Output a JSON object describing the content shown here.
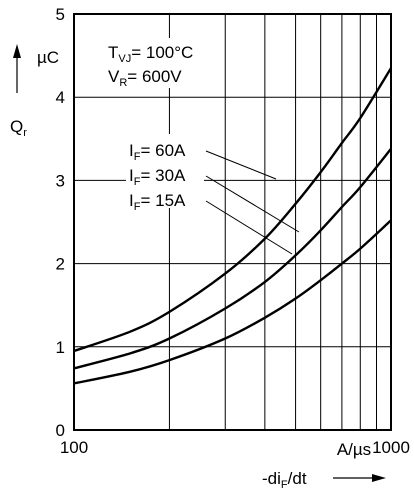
{
  "chart_data": {
    "type": "line",
    "x_scale": "log",
    "xlim": [
      100,
      1000
    ],
    "ylim": [
      0,
      5
    ],
    "grid": true,
    "y_ticks": [
      "0",
      "1",
      "2",
      "3",
      "4",
      "5"
    ],
    "x_tick_labels": {
      "left": "100",
      "right": "1000"
    },
    "y_unit": "µC",
    "y_label": {
      "main": "Q",
      "sub": "r"
    },
    "x_unit": "A/µs",
    "x_label": {
      "pre": "-di",
      "sub": "F",
      "post": "/dt"
    },
    "conditions": [
      {
        "main": "T",
        "sub": "VJ",
        "rest": "= 100°C"
      },
      {
        "main": "V",
        "sub": "R",
        "rest": "= 600V"
      }
    ],
    "series": [
      {
        "name": "I_F= 60A",
        "label": {
          "main": "I",
          "sub": "F",
          "rest": "= 60A"
        },
        "x": [
          100,
          150,
          200,
          300,
          400,
          500,
          600,
          700,
          800,
          1000
        ],
        "y": [
          0.95,
          1.18,
          1.42,
          1.88,
          2.3,
          2.72,
          3.1,
          3.45,
          3.75,
          4.35
        ]
      },
      {
        "name": "I_F= 30A",
        "label": {
          "main": "I",
          "sub": "F",
          "rest": "= 30A"
        },
        "x": [
          100,
          150,
          200,
          300,
          400,
          500,
          600,
          700,
          800,
          1000
        ],
        "y": [
          0.74,
          0.92,
          1.1,
          1.46,
          1.78,
          2.1,
          2.4,
          2.68,
          2.92,
          3.38
        ]
      },
      {
        "name": "I_F= 15A",
        "label": {
          "main": "I",
          "sub": "F",
          "rest": "= 15A"
        },
        "x": [
          100,
          150,
          200,
          300,
          400,
          500,
          600,
          700,
          800,
          1000
        ],
        "y": [
          0.56,
          0.7,
          0.84,
          1.1,
          1.35,
          1.58,
          1.8,
          2.0,
          2.18,
          2.52
        ]
      }
    ]
  }
}
